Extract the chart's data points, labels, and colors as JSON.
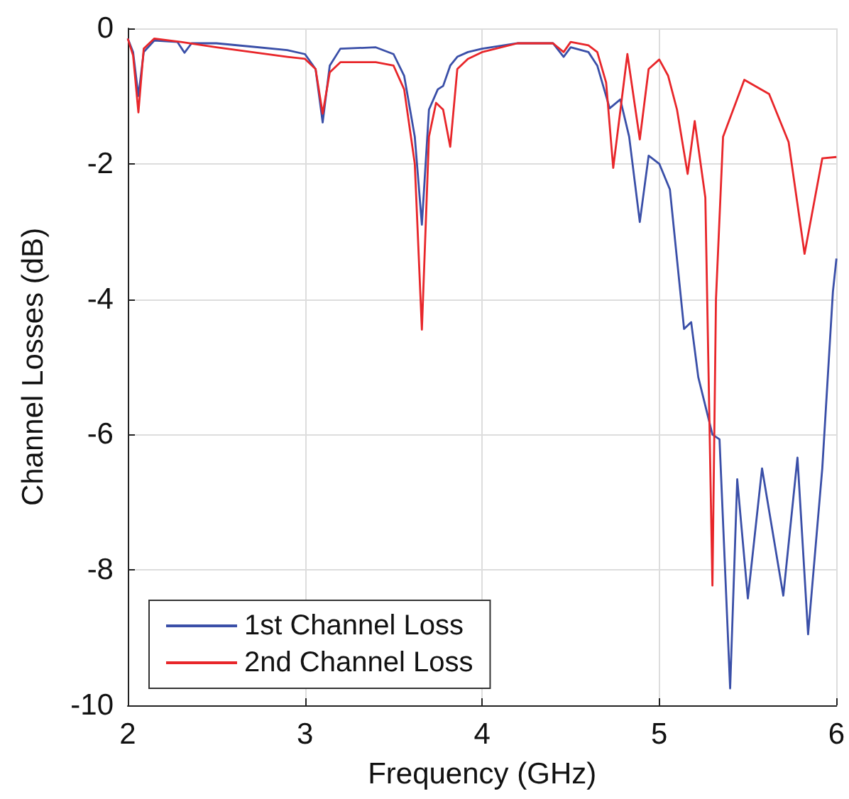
{
  "chart_data": {
    "type": "line",
    "xlabel": "Frequency (GHz)",
    "ylabel": "Channel Losses (dB)",
    "xlim": [
      2,
      6
    ],
    "xticks": [
      2,
      3,
      4,
      5,
      6
    ],
    "ylim": [
      -10,
      0
    ],
    "yticks": [
      -10,
      -8,
      -6,
      -4,
      -2,
      0
    ],
    "grid": true,
    "legend": "bottom left",
    "marker": "none",
    "line_style": "solid",
    "series": [
      {
        "name": "1st Channel Loss",
        "color": "#3a4fa8",
        "x": [
          2,
          2.03,
          2.06,
          2.09,
          2.15,
          2.28,
          2.32,
          2.36,
          2.5,
          2.7,
          2.9,
          3.0,
          3.06,
          3.1,
          3.14,
          3.2,
          3.4,
          3.5,
          3.56,
          3.62,
          3.66,
          3.7,
          3.75,
          3.78,
          3.82,
          3.86,
          3.92,
          4.0,
          4.2,
          4.4,
          4.46,
          4.5,
          4.6,
          4.65,
          4.7,
          4.72,
          4.78,
          4.83,
          4.89,
          4.94,
          5.0,
          5.06,
          5.14,
          5.18,
          5.22,
          5.3,
          5.34,
          5.4,
          5.44,
          5.5,
          5.58,
          5.7,
          5.78,
          5.84,
          5.92,
          5.98,
          6
        ],
        "values": [
          -0.15,
          -0.35,
          -1.0,
          -0.35,
          -0.18,
          -0.2,
          -0.36,
          -0.22,
          -0.22,
          -0.27,
          -0.32,
          -0.38,
          -0.6,
          -1.39,
          -0.55,
          -0.3,
          -0.28,
          -0.38,
          -0.7,
          -1.6,
          -2.9,
          -1.2,
          -0.9,
          -0.85,
          -0.55,
          -0.42,
          -0.35,
          -0.3,
          -0.22,
          -0.22,
          -0.42,
          -0.28,
          -0.35,
          -0.55,
          -1.0,
          -1.18,
          -1.05,
          -1.6,
          -2.86,
          -1.88,
          -2.0,
          -2.38,
          -4.44,
          -4.34,
          -5.15,
          -6.0,
          -6.07,
          -9.75,
          -6.66,
          -8.42,
          -6.5,
          -8.38,
          -6.34,
          -8.95,
          -6.5,
          -3.89,
          -3.4
        ]
      },
      {
        "name": "2nd Channel Loss",
        "color": "#e8262a",
        "x": [
          2,
          2.03,
          2.06,
          2.09,
          2.15,
          2.3,
          2.5,
          2.7,
          2.9,
          3.0,
          3.06,
          3.1,
          3.14,
          3.2,
          3.4,
          3.5,
          3.56,
          3.62,
          3.66,
          3.7,
          3.74,
          3.78,
          3.82,
          3.86,
          3.92,
          4.0,
          4.2,
          4.4,
          4.46,
          4.5,
          4.6,
          4.65,
          4.7,
          4.74,
          4.82,
          4.89,
          4.94,
          5.0,
          5.05,
          5.1,
          5.16,
          5.2,
          5.26,
          5.3,
          5.32,
          5.36,
          5.48,
          5.62,
          5.73,
          5.82,
          5.92,
          6
        ],
        "values": [
          -0.15,
          -0.4,
          -1.24,
          -0.3,
          -0.15,
          -0.2,
          -0.28,
          -0.35,
          -0.42,
          -0.45,
          -0.6,
          -1.26,
          -0.65,
          -0.5,
          -0.5,
          -0.55,
          -0.9,
          -2.0,
          -4.45,
          -1.6,
          -1.1,
          -1.2,
          -1.75,
          -0.6,
          -0.45,
          -0.35,
          -0.22,
          -0.22,
          -0.35,
          -0.2,
          -0.25,
          -0.35,
          -0.8,
          -2.06,
          -0.38,
          -1.64,
          -0.6,
          -0.46,
          -0.7,
          -1.2,
          -2.15,
          -1.37,
          -2.5,
          -8.23,
          -4.0,
          -1.6,
          -0.76,
          -0.97,
          -1.68,
          -3.33,
          -1.92,
          -1.9
        ]
      }
    ]
  }
}
